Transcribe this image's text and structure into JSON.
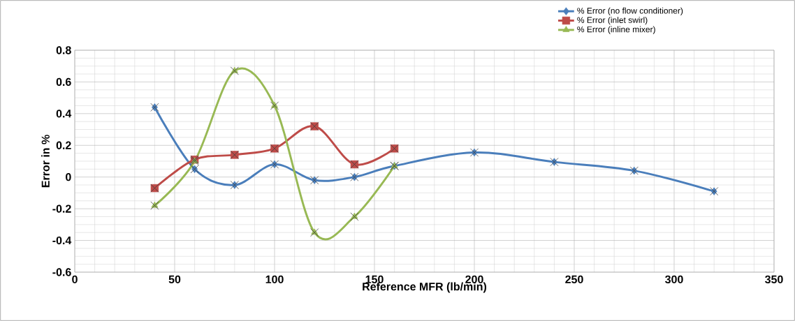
{
  "chart_data": {
    "type": "line",
    "xlabel": "Reference MFR (lb/min)",
    "ylabel": "Error in %",
    "xlim": [
      0,
      350
    ],
    "xticks": [
      0,
      50,
      100,
      150,
      200,
      250,
      300,
      350
    ],
    "ylim": [
      -0.6,
      0.8
    ],
    "yticks": [
      -0.6,
      -0.4,
      -0.2,
      0,
      0.2,
      0.4,
      0.6,
      0.8
    ],
    "grid": true,
    "legend": "top right",
    "series": [
      {
        "name": "% Error (no flow conditioner)",
        "color": "#4a7ebb",
        "marker": "diamond",
        "x": [
          40,
          60,
          80,
          100,
          120,
          140,
          160,
          200,
          240,
          280,
          320
        ],
        "values": [
          0.44,
          0.05,
          -0.05,
          0.08,
          -0.02,
          0.0,
          0.07,
          0.155,
          0.095,
          0.04,
          -0.09
        ]
      },
      {
        "name": "% Error (inlet swirl)",
        "color": "#be4b48",
        "marker": "square",
        "x": [
          40,
          60,
          80,
          100,
          120,
          140,
          160
        ],
        "values": [
          -0.07,
          0.11,
          0.14,
          0.18,
          0.32,
          0.08,
          0.18
        ]
      },
      {
        "name": "% Error (inline mixer)",
        "color": "#98b954",
        "marker": "triangle",
        "x": [
          40,
          60,
          80,
          100,
          120,
          140,
          160
        ],
        "values": [
          -0.18,
          0.1,
          0.67,
          0.45,
          -0.35,
          -0.25,
          0.07
        ]
      },
      {
        "type": "scatter",
        "color": "#404040",
        "marker": "cross",
        "x": [
          40,
          60,
          80,
          100,
          120,
          140,
          160,
          200,
          240,
          280,
          320,
          40,
          60,
          80,
          100,
          120,
          140,
          160,
          40,
          60,
          80,
          100,
          120,
          140,
          160
        ],
        "values": [
          0.44,
          0.05,
          -0.05,
          0.08,
          -0.02,
          0.0,
          0.07,
          0.155,
          0.095,
          0.04,
          -0.09,
          -0.07,
          0.11,
          0.14,
          0.18,
          0.32,
          0.08,
          0.18,
          -0.18,
          0.1,
          0.67,
          0.45,
          -0.35,
          -0.25,
          0.07
        ]
      }
    ]
  }
}
